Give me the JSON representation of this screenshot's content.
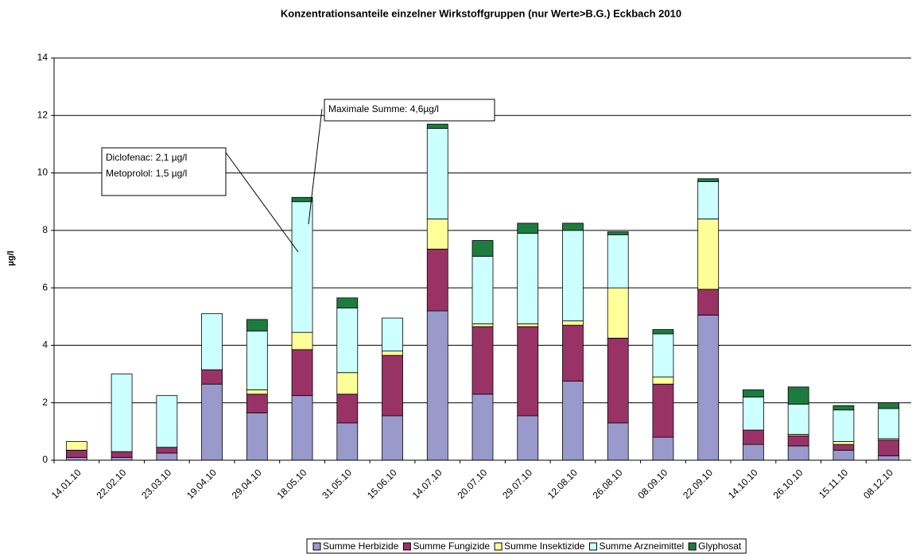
{
  "chart_data": {
    "type": "stacked_bar",
    "title": "Konzentrationsanteile einzelner Wirkstoffgruppen (nur Werte>B.G.) Eckbach 2010",
    "y_label": "µg/l",
    "categories": [
      "14.01.10",
      "22.02.10",
      "23.03.10",
      "19.04.10",
      "29.04.10",
      "18.05.10",
      "31.05.10",
      "15.06.10",
      "14.07.10",
      "20.07.10",
      "29.07.10",
      "12.08.10",
      "26.08.10",
      "08.09.10",
      "22.09.10",
      "14.10.10",
      "26.10.10",
      "15.11.10",
      "08.12.10"
    ],
    "series": [
      {
        "name": "Summe Herbizide",
        "color": "#9999cc",
        "values": [
          0.1,
          0.1,
          0.25,
          2.65,
          1.65,
          2.25,
          1.3,
          1.55,
          5.2,
          2.3,
          1.55,
          2.75,
          1.3,
          0.8,
          5.05,
          0.55,
          0.5,
          0.35,
          0.15
        ]
      },
      {
        "name": "Summe Fungizide",
        "color": "#993366",
        "values": [
          0.25,
          0.2,
          0.2,
          0.5,
          0.65,
          1.6,
          1.0,
          2.1,
          2.15,
          2.35,
          3.1,
          1.95,
          2.95,
          1.85,
          0.9,
          0.5,
          0.35,
          0.2,
          0.55
        ]
      },
      {
        "name": "Summe Insektizide",
        "color": "#ffff99",
        "values": [
          0.3,
          0,
          0,
          0,
          0.15,
          0.6,
          0.75,
          0.15,
          1.05,
          0.1,
          0.1,
          0.15,
          1.75,
          0.25,
          2.45,
          0,
          0.05,
          0.1,
          0.05
        ]
      },
      {
        "name": "Summe Arzneimittel",
        "color": "#ccffff",
        "values": [
          0,
          2.7,
          1.8,
          1.95,
          2.05,
          4.55,
          2.25,
          1.15,
          3.15,
          2.35,
          3.15,
          3.15,
          1.85,
          1.5,
          1.3,
          1.15,
          1.05,
          1.1,
          1.05
        ]
      },
      {
        "name": "Glyphosat",
        "color": "#1e7b3f",
        "values": [
          0,
          0,
          0,
          0,
          0.4,
          0.15,
          0.35,
          0,
          0.15,
          0.55,
          0.35,
          0.25,
          0.1,
          0.15,
          0.1,
          0.25,
          0.6,
          0.15,
          0.2
        ]
      }
    ],
    "ylim": [
      0,
      14
    ],
    "yticks": [
      0,
      2,
      4,
      6,
      8,
      10,
      12,
      14
    ],
    "grid": true,
    "annotations": [
      {
        "lines": [
          "Maximale Summe: 4,6µg/l"
        ]
      },
      {
        "lines": [
          "Diclofenac: 2,1 µg/l",
          "Metoprolol: 1,5 µg/l"
        ]
      }
    ]
  }
}
